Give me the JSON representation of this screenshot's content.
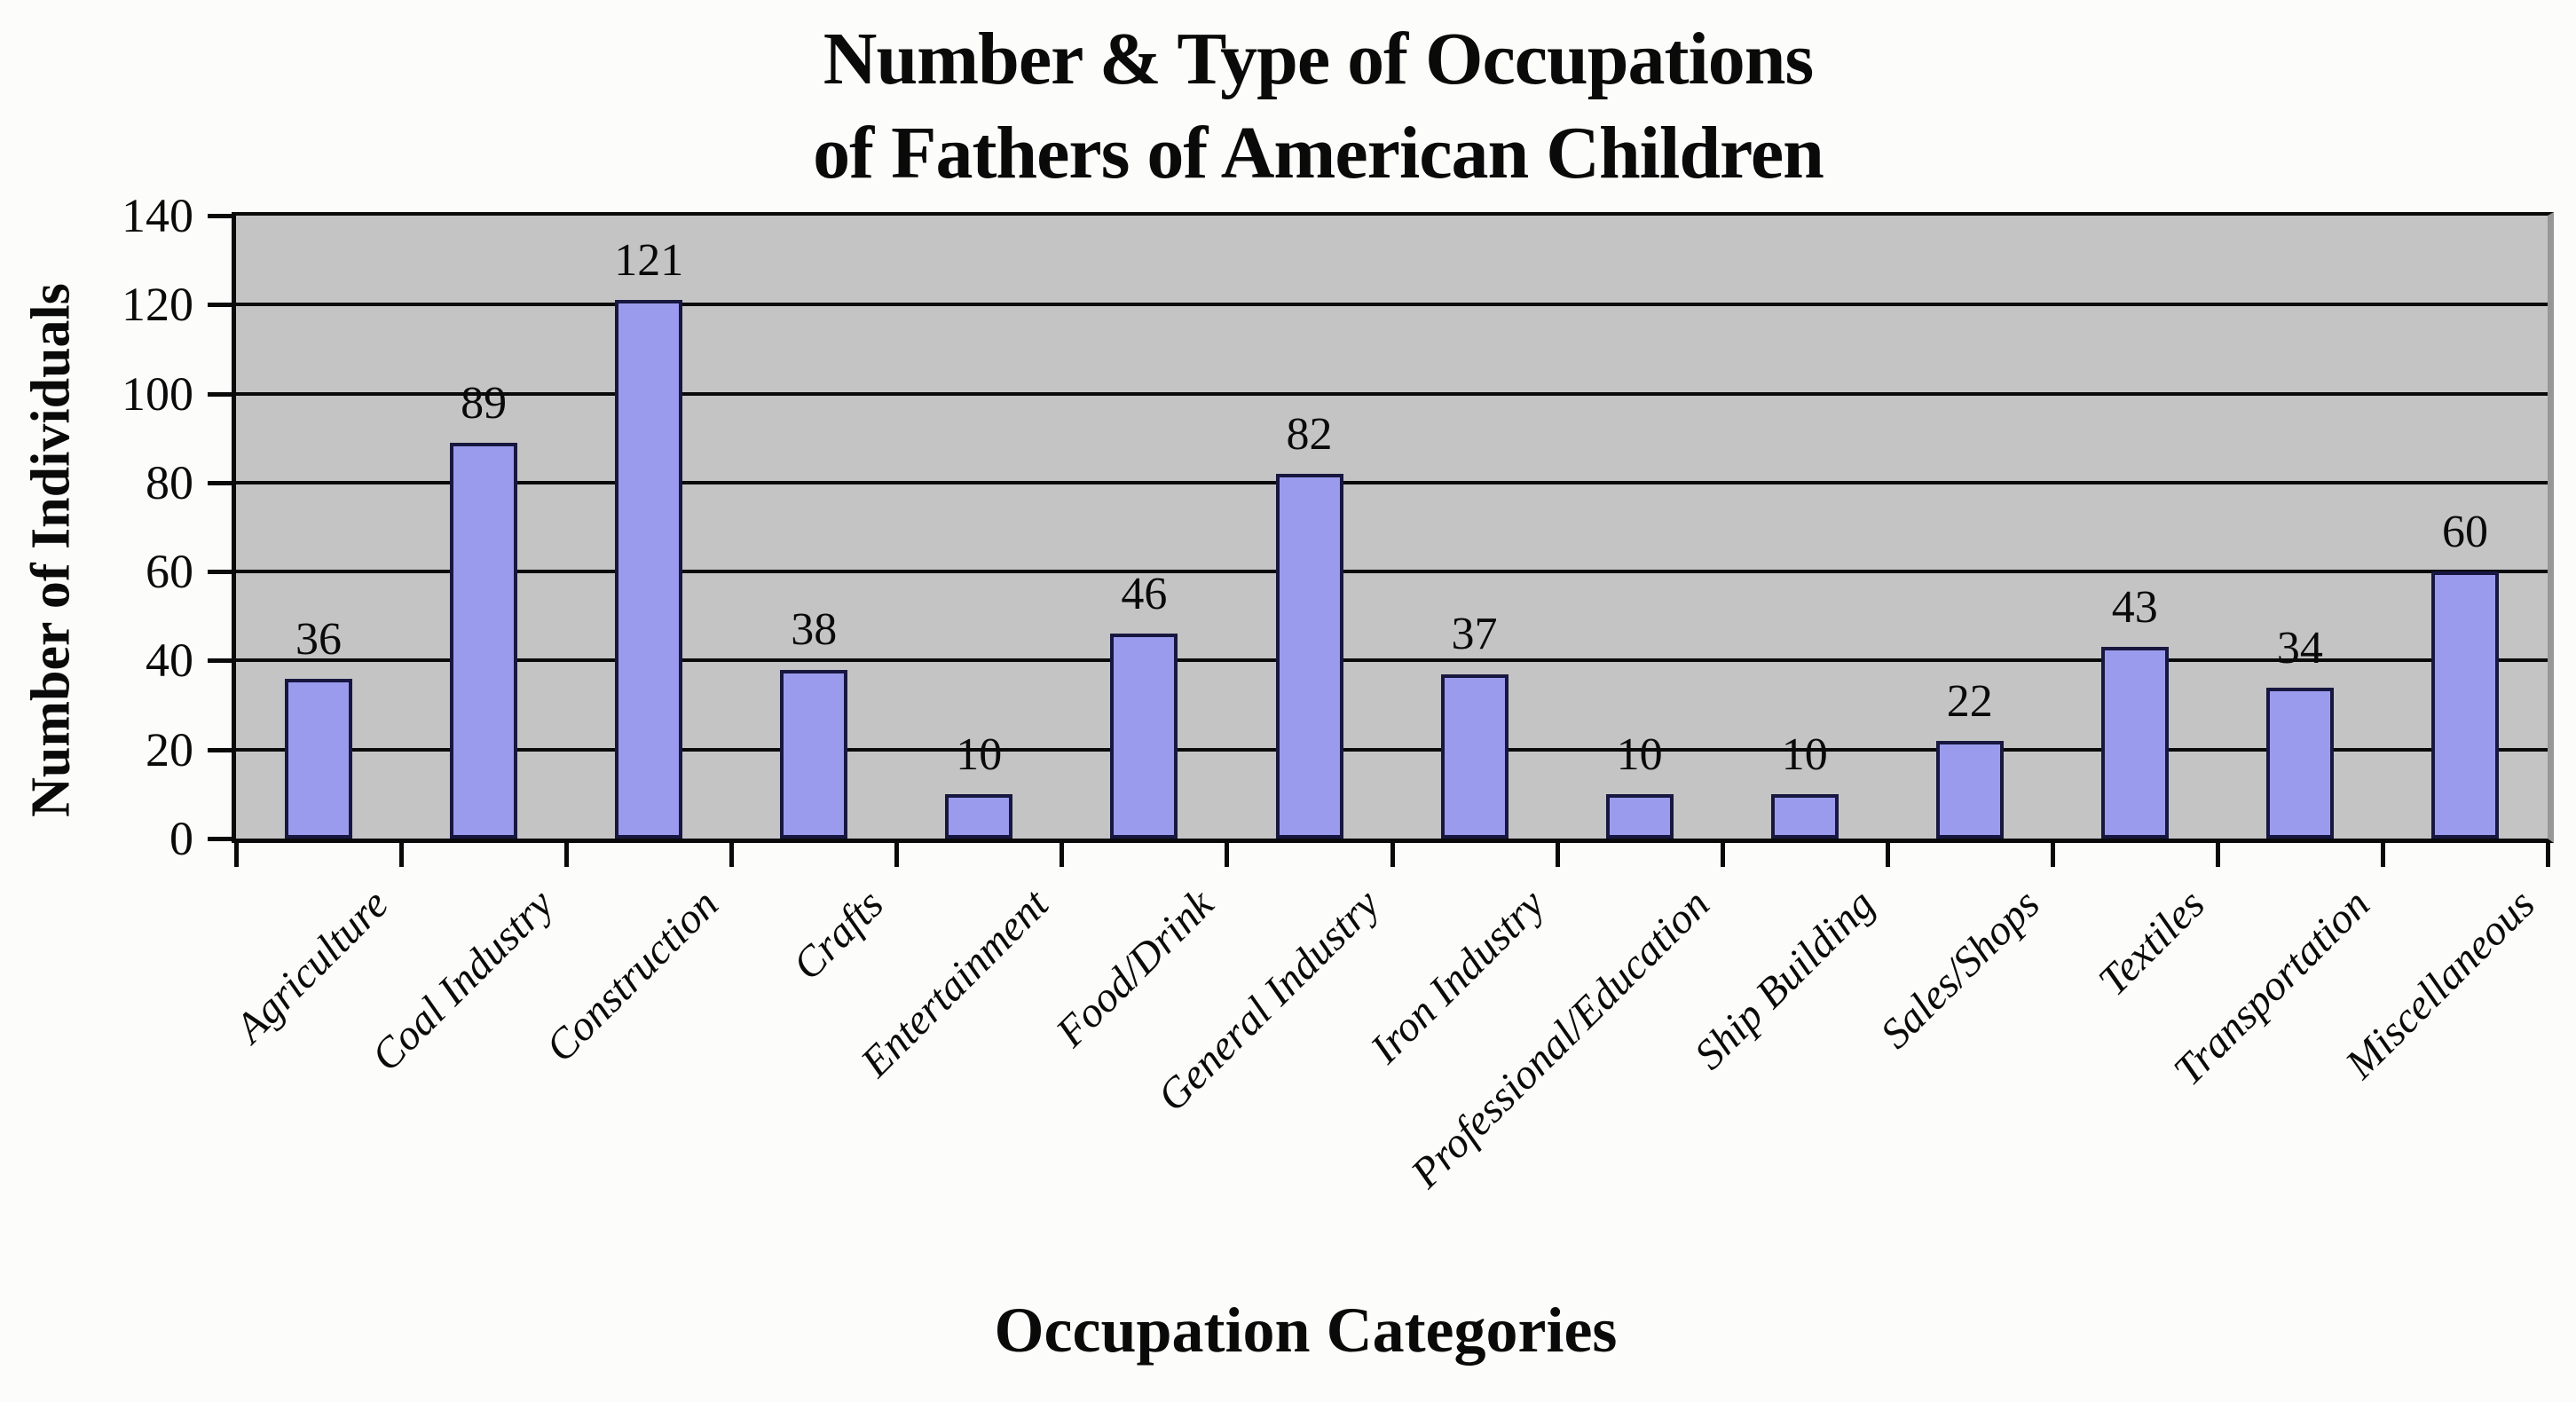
{
  "page": {
    "background": "#fcfcfa"
  },
  "header": {
    "title_line1": "Number & Type of Occupations",
    "title_line2": "of Fathers of American Children"
  },
  "chart_data": {
    "type": "bar",
    "title": "Number & Type of Occupations of Fathers of American Children",
    "xlabel": "Occupation Categories",
    "ylabel": "Number of Individuals",
    "categories": [
      "Agriculture",
      "Coal Industry",
      "Construction",
      "Crafts",
      "Entertainment",
      "Food/Drink",
      "General Industry",
      "Iron Industry",
      "Professional/Education",
      "Ship Building",
      "Sales/Shops",
      "Textiles",
      "Transportation",
      "Miscellaneous"
    ],
    "values": [
      36,
      89,
      121,
      38,
      10,
      46,
      82,
      37,
      10,
      10,
      22,
      43,
      34,
      60
    ],
    "ylim": [
      0,
      140
    ],
    "yticks": [
      0,
      20,
      40,
      60,
      80,
      100,
      120,
      140
    ],
    "grid": true,
    "legend": false,
    "data_labels": true,
    "colors": {
      "bar_fill": "#9b9bee",
      "bar_border": "#17173f",
      "plot_background": "#c4c4c4",
      "gridline": "#0a0a0a",
      "axis": "#0a0a0a",
      "text": "#0a0a0a",
      "page_background": "#fcfcfa"
    }
  }
}
